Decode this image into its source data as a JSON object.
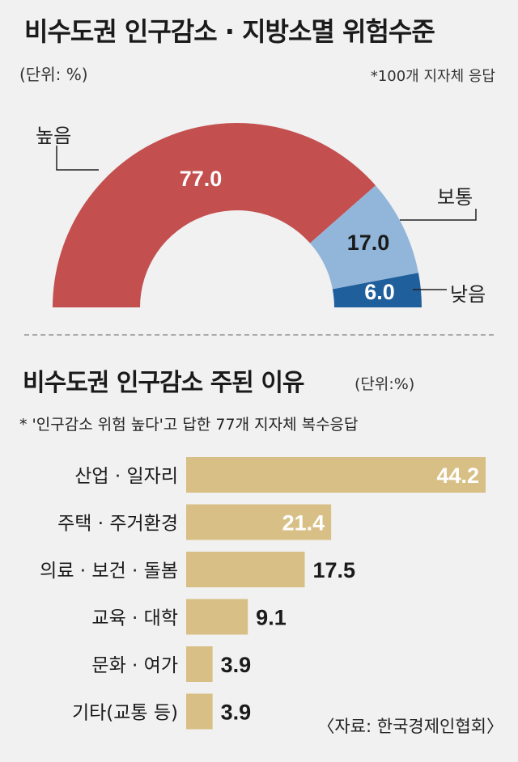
{
  "chart_data": [
    {
      "type": "pie",
      "title": "비수도권 인구감소 · 지방소멸 위험수준",
      "unit": "(단위: %)",
      "note": "*100개 지자체 응답",
      "categories": [
        "높음",
        "보통",
        "낮음"
      ],
      "values": [
        77.0,
        17.0,
        6.0
      ],
      "value_labels": [
        "77.0",
        "17.0",
        "6.0"
      ],
      "colors": [
        "#c44f4f",
        "#92b6da",
        "#1f5f9c"
      ]
    },
    {
      "type": "bar",
      "title": "비수도권 인구감소 주된 이유",
      "unit": "(단위:%)",
      "note": "* '인구감소 위험 높다'고 답한 77개 지자체 복수응답",
      "categories": [
        "산업 · 일자리",
        "주택 · 주거환경",
        "의료 · 보건 · 돌봄",
        "교육 · 대학",
        "문화 · 여가",
        "기타(교통 등)"
      ],
      "values": [
        44.2,
        21.4,
        17.5,
        9.1,
        3.9,
        3.9
      ],
      "value_labels": [
        "44.2",
        "21.4",
        "17.5",
        "9.1",
        "3.9",
        "3.9"
      ],
      "bar_color": "#d8bf85"
    }
  ],
  "source": "〈자료: 한국경제인협회〉"
}
